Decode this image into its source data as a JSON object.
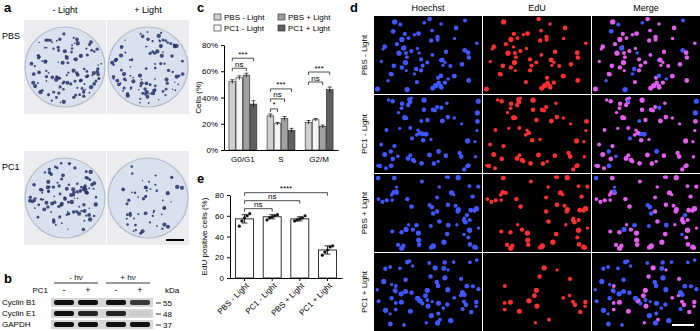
{
  "chart_data": [
    {
      "type": "bar",
      "title": "c",
      "y_label": "Cells (%)",
      "categories": [
        "G0/G1",
        "S",
        "G2/M"
      ],
      "series": [
        {
          "name": "PBS - Light",
          "color": "#d0d0d0",
          "values": [
            52,
            26,
            21
          ],
          "errors": [
            1.5,
            1.5,
            1.5
          ]
        },
        {
          "name": "PC1 - Light",
          "color": "#f4f4f4",
          "values": [
            55,
            20,
            23
          ],
          "errors": [
            1.5,
            1,
            1
          ]
        },
        {
          "name": "PBS + Light",
          "color": "#a0a0a0",
          "values": [
            57,
            24,
            18
          ],
          "errors": [
            1.5,
            1.5,
            1
          ]
        },
        {
          "name": "PC1 + Light",
          "color": "#606060",
          "values": [
            35,
            15,
            46
          ],
          "errors": [
            2.5,
            1.5,
            2
          ]
        }
      ],
      "ylim": [
        0,
        80
      ],
      "yticks": [
        {
          "value": 0,
          "label": "0%"
        },
        {
          "value": 20,
          "label": "20%"
        },
        {
          "value": 40,
          "label": "40%"
        },
        {
          "value": 60,
          "label": "60%"
        },
        {
          "value": 80,
          "label": "80%"
        }
      ],
      "legend": "top",
      "annotations": [
        {
          "label": "ns",
          "category": "G0/G1",
          "from": "PBS - Light",
          "to": "PBS + Light"
        },
        {
          "label": "***",
          "category": "G0/G1",
          "from": "PBS - Light",
          "to": "PC1 + Light"
        },
        {
          "label": "*",
          "category": "S",
          "from": "PBS - Light",
          "to": "PC1 - Light"
        },
        {
          "label": "ns",
          "category": "S",
          "from": "PBS - Light",
          "to": "PBS + Light"
        },
        {
          "label": "***",
          "category": "S",
          "from": "PBS - Light",
          "to": "PC1 + Light"
        },
        {
          "label": "ns",
          "category": "G2/M",
          "from": "PBS - Light",
          "to": "PBS + Light"
        },
        {
          "label": "***",
          "category": "G2/M",
          "from": "PBS - Light",
          "to": "PC1 + Light"
        }
      ]
    },
    {
      "type": "bar",
      "title": "e",
      "y_label": "EdU positive cells (%)",
      "categories": [
        "PBS - Light",
        "PC1 - Light",
        "PBS + Light",
        "PC1 + Light"
      ],
      "values": [
        57,
        59,
        57,
        27
      ],
      "errors": [
        4,
        2,
        2,
        4
      ],
      "points": [
        [
          50,
          55,
          58,
          60,
          62
        ],
        [
          56,
          58,
          59,
          60,
          61
        ],
        [
          55,
          56,
          57,
          58,
          60
        ],
        [
          22,
          25,
          27,
          30,
          31
        ]
      ],
      "color": "#ffffff",
      "ylim": [
        0,
        80
      ],
      "yticks": [
        0,
        20,
        40,
        60,
        80
      ],
      "annotations": [
        {
          "label": "ns",
          "from": "PBS - Light",
          "to": "PC1 - Light"
        },
        {
          "label": "ns",
          "from": "PBS - Light",
          "to": "PBS + Light"
        },
        {
          "label": "****",
          "from": "PBS - Light",
          "to": "PC1 + Light"
        }
      ]
    }
  ],
  "panels": {
    "a": {
      "label": "a",
      "columns": [
        "- Light",
        "+ Light"
      ],
      "rows": [
        "PBS",
        "PC1"
      ],
      "colonies": [
        [
          110,
          100
        ],
        [
          105,
          50
        ]
      ]
    },
    "b": {
      "label": "b",
      "columns": [
        "- hν",
        "+ hν"
      ],
      "treatment_label": "PC1",
      "treatment_states": [
        "-",
        "+",
        "-",
        "+"
      ],
      "unit": "kDa",
      "rows": [
        {
          "name": "Cyclin B1",
          "kda": 55,
          "intensity": [
            1,
            1,
            1,
            0.8
          ]
        },
        {
          "name": "Cyclin E1",
          "kda": 48,
          "intensity": [
            1,
            0.9,
            0.9,
            0.05
          ]
        },
        {
          "name": "GAPDH",
          "kda": 37,
          "intensity": [
            1,
            1,
            1,
            1
          ]
        }
      ]
    },
    "d": {
      "label": "d",
      "columns": [
        "Hoechst",
        "EdU",
        "Merge"
      ],
      "rows": [
        "PBS - Light",
        "PC1 - Light",
        "PBS + Light",
        "PC1 + Light"
      ],
      "nuclei": [
        70,
        70,
        70,
        70
      ],
      "edu": [
        55,
        56,
        55,
        20
      ]
    }
  }
}
